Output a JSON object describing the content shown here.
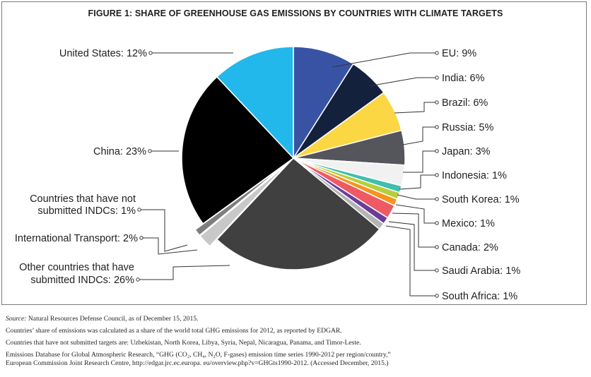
{
  "title": "FIGURE 1: SHARE OF GREENHOUSE GAS EMISSIONS BY COUNTRIES WITH CLIMATE TARGETS",
  "chart_data": {
    "type": "pie",
    "title": "FIGURE 1: SHARE OF GREENHOUSE GAS EMISSIONS BY COUNTRIES WITH CLIMATE TARGETS",
    "slices": [
      {
        "label": "EU: 9%",
        "value": 9,
        "color": "#3953a4"
      },
      {
        "label": "India: 6%",
        "value": 6,
        "color": "#14213d"
      },
      {
        "label": "Brazil: 6%",
        "value": 6,
        "color": "#fcd744"
      },
      {
        "label": "Russia: 5%",
        "value": 5,
        "color": "#54565b"
      },
      {
        "label": "Japan: 3%",
        "value": 3,
        "color": "#f1f1f1"
      },
      {
        "label": "Indonesia: 1%",
        "value": 1,
        "color": "#3fbfad"
      },
      {
        "label": "South Korea: 1%",
        "value": 1,
        "color": "#b5cf3b"
      },
      {
        "label": "Mexico: 1%",
        "value": 1,
        "color": "#f7941d"
      },
      {
        "label": "Canada: 2%",
        "value": 2,
        "color": "#ee5a64"
      },
      {
        "label": "Saudi Arabia: 1%",
        "value": 1,
        "color": "#6a3d9a"
      },
      {
        "label": "South Africa: 1%",
        "value": 1,
        "color": "#b4b4b4"
      },
      {
        "label": "Other countries that have submitted INDCs: 26%",
        "value": 26,
        "color": "#404041"
      },
      {
        "label": "International Transport: 2%",
        "value": 2,
        "color": "#c8c8c8"
      },
      {
        "label": "Countries that have not submitted INDCs: 1%",
        "value": 1,
        "color": "#7e7e7e"
      },
      {
        "label": "China: 23%",
        "value": 23,
        "color": "#000000"
      },
      {
        "label": "United States: 12%",
        "value": 12,
        "color": "#22b8eb"
      }
    ],
    "labels": {
      "eu": "EU: 9%",
      "india": "India: 6%",
      "brazil": "Brazil: 6%",
      "russia": "Russia: 5%",
      "japan": "Japan: 3%",
      "indonesia": "Indonesia: 1%",
      "south_korea": "South Korea: 1%",
      "mexico": "Mexico: 1%",
      "canada": "Canada: 2%",
      "saudi_arabia": "Saudi Arabia: 1%",
      "south_africa": "South Africa: 1%",
      "united_states": "United States: 12%",
      "china": "China: 23%",
      "not_submitted_line1": "Countries that have not",
      "not_submitted_line2": "submitted INDCs: 1%",
      "intl_transport": "International Transport: 2%",
      "other_line1": "Other countries that have",
      "other_line2": "submitted INDCs: 26%"
    }
  },
  "notes": {
    "source_label": "Source:",
    "source_text": " Natural Resources Defense Council, as of December 15, 2015.",
    "note1": "Countries’ share of emissions was calculated as a share of the world total GHG emissions for 2012, as reported by EDGAR.",
    "note2": "Countries that have not submitted targets are: Uzbekistan, North Korea, Libya, Syria, Nepal, Nicaragua, Panama, and Timor-Leste.",
    "note3_line1": "Emissions Database for Global Atmospheric Research, “GHG (CO₂, CH₄, N₂O, F-gases) emission time series 1990-2012 per region/country,”",
    "note3_line2": "European Commission Joint Research Centre, http://edgar.jrc.ec.europa. eu/overview.php?v=GHGts1990-2012. (Accessed December, 2015.)"
  }
}
